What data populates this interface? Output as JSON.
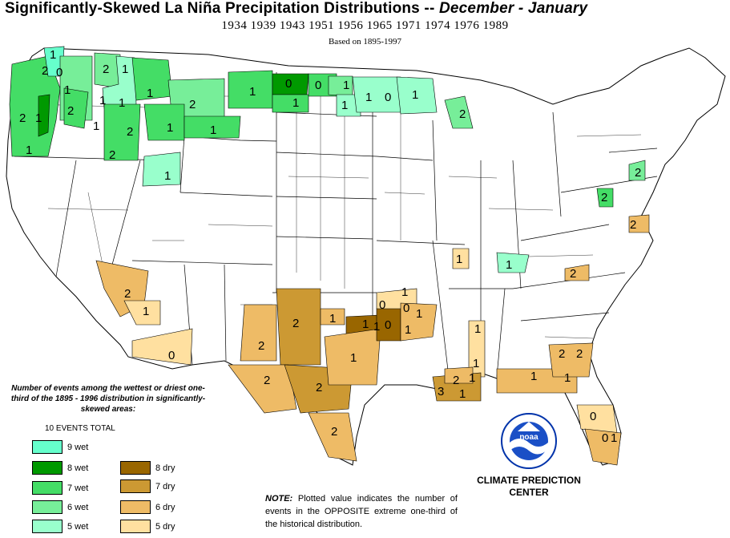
{
  "header": {
    "title_main": "Significantly-Skewed La Niña Precipitation Distributions  --",
    "title_season": "December - January",
    "years": "1934 1939 1943 1951 1956 1965 1971 1974 1976 1989",
    "based_on": "Based on 1895-1997"
  },
  "legend": {
    "heading": "Number of events among the wettest or driest one-third of the 1895 - 1996 distribution in significantly-skewed areas:",
    "total": "10 EVENTS TOTAL",
    "wet": [
      {
        "label": "9 wet",
        "color": "#66ffcc"
      },
      {
        "label": "8 wet",
        "color": "#009900"
      },
      {
        "label": "7 wet",
        "color": "#44dd66"
      },
      {
        "label": "6 wet",
        "color": "#77ee99"
      },
      {
        "label": "5 wet",
        "color": "#99ffcc"
      }
    ],
    "dry": [
      {
        "label": "8 dry",
        "color": "#996600"
      },
      {
        "label": "7 dry",
        "color": "#cc9933"
      },
      {
        "label": "6 dry",
        "color": "#eebb66"
      },
      {
        "label": "5 dry",
        "color": "#ffe0a0"
      }
    ]
  },
  "note": {
    "prefix": "NOTE:",
    "text": "Plotted value indicates the number of events in the OPPOSITE extreme one-third of the historical distribution."
  },
  "logo": {
    "center_text": "noaa",
    "caption_line1": "CLIMATE PREDICTION",
    "caption_line2": "CENTER"
  },
  "map": {
    "labels": [
      "1",
      "2",
      "0",
      "1",
      "2",
      "1",
      "2",
      "1",
      "1",
      "1",
      "2",
      "1",
      "2",
      "1",
      "2",
      "1",
      "2",
      "1",
      "1",
      "1",
      "1",
      "0",
      "0",
      "1",
      "1",
      "1",
      "1",
      "0",
      "1",
      "2",
      "2",
      "2",
      "1",
      "0",
      "1",
      "2",
      "2",
      "2",
      "2",
      "1",
      "0",
      "1",
      "1",
      "0",
      "0",
      "1",
      "1",
      "1",
      "2",
      "1",
      "2",
      "3",
      "1",
      "2",
      "1",
      "1",
      "1",
      "2",
      "1",
      "0",
      "0",
      "1",
      "1",
      "2",
      "2",
      "2",
      "1"
    ]
  }
}
